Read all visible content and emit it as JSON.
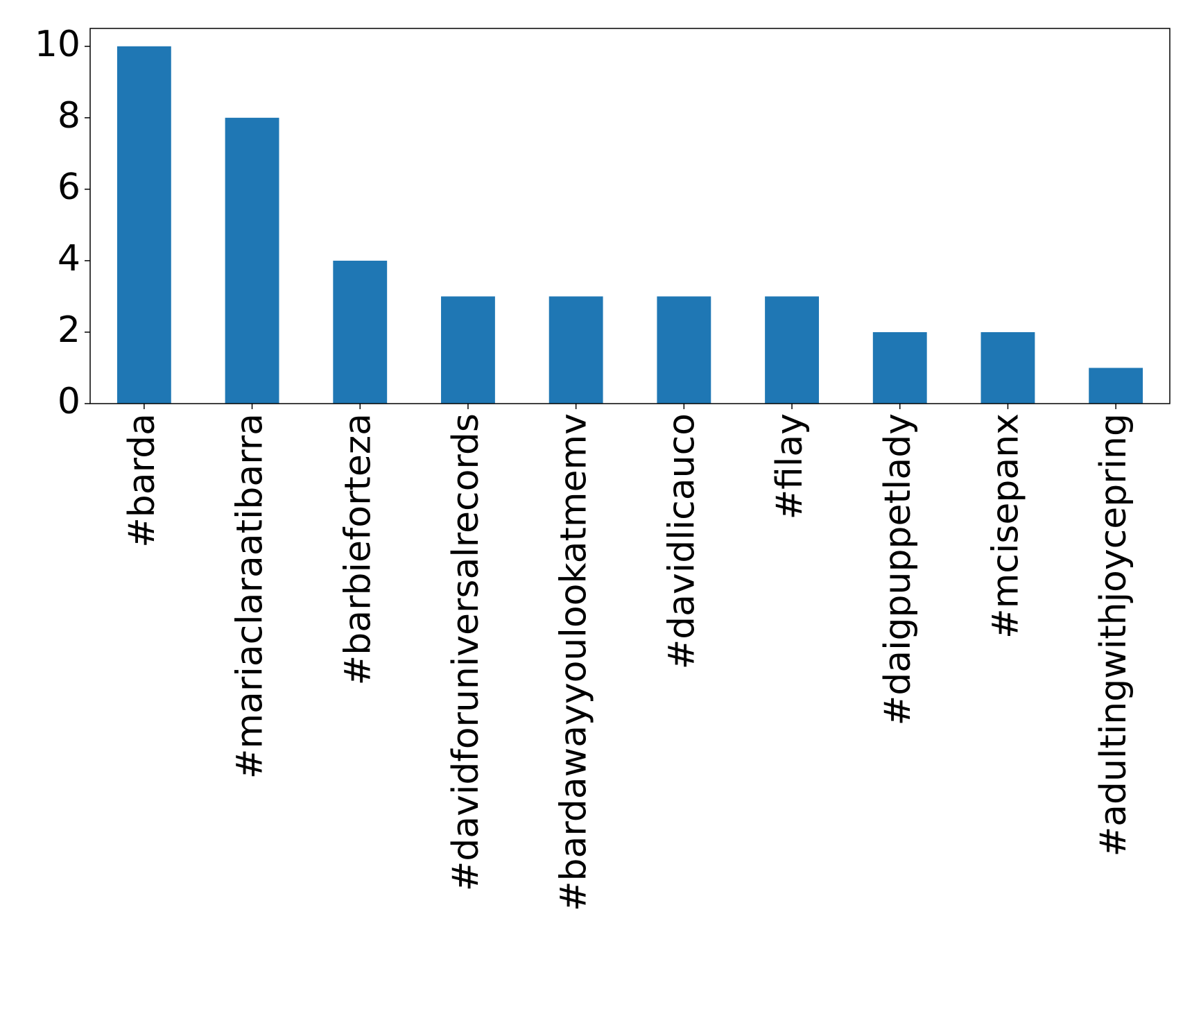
{
  "chart_data": {
    "type": "bar",
    "categories": [
      "#barda",
      "#mariaclaraatibarra",
      "#barbieforteza",
      "#davidforuniversalrecords",
      "#bardawayyoulookatmemv",
      "#davidlicauco",
      "#filay",
      "#daigpuppetlady",
      "#mcisepanx",
      "#adultingwithjoycepring"
    ],
    "values": [
      10,
      8,
      4,
      3,
      3,
      3,
      3,
      2,
      2,
      1
    ],
    "color": "#1f77b4",
    "ylim": [
      0,
      10.5
    ],
    "yticks": [
      0,
      2,
      4,
      6,
      8,
      10
    ],
    "grid": false
  }
}
